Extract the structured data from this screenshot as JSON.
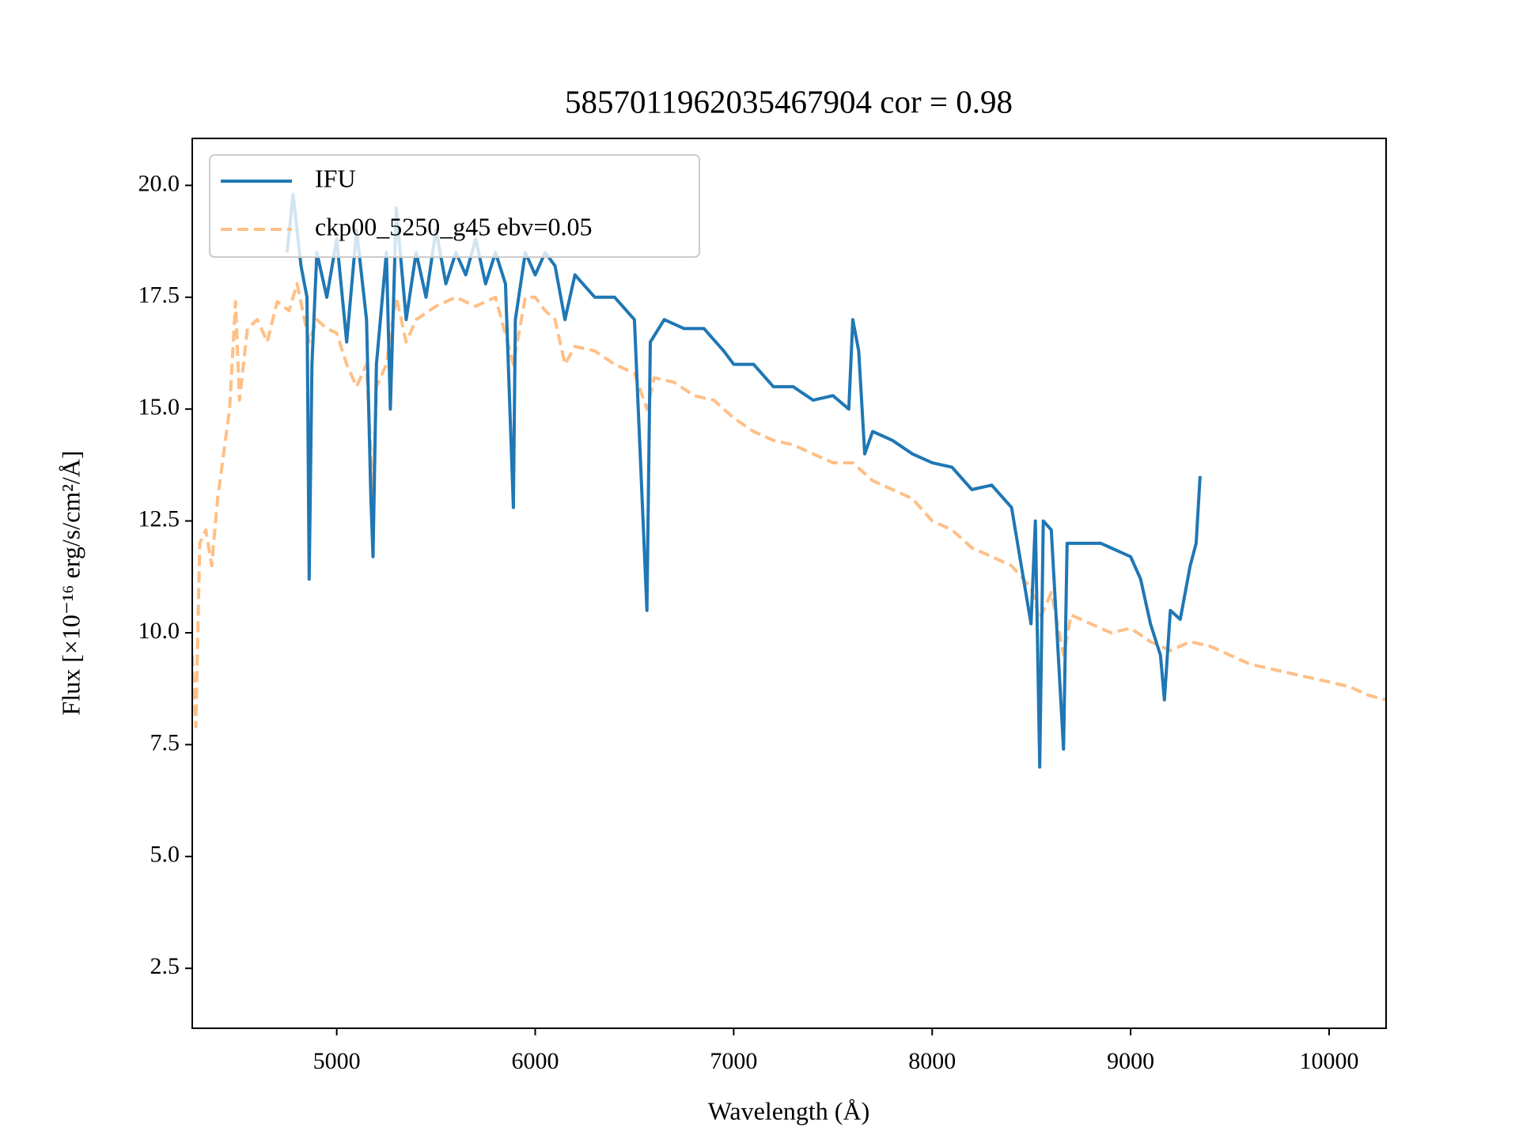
{
  "chart_data": {
    "type": "line",
    "title": "5857011962035467904 cor = 0.98",
    "xlabel": "Wavelength (Å)",
    "ylabel": "Flux [×10⁻¹⁶ erg/s/cm²/Å]",
    "xlim": [
      4272,
      10287
    ],
    "ylim": [
      1.16,
      21.05
    ],
    "xticks": [
      5000,
      6000,
      7000,
      8000,
      9000,
      10000
    ],
    "yticks": [
      2.5,
      {
        "value": 5,
        "label": "5.0"
      },
      7.5,
      {
        "value": 10,
        "label": "10.0"
      },
      12.5,
      {
        "value": 15,
        "label": "15.0"
      },
      17.5,
      {
        "value": 20,
        "label": "20.0"
      }
    ],
    "legend": "upper left",
    "series": [
      {
        "name": "IFU",
        "color": "#1f77b4",
        "dash": false,
        "x": [
          4750,
          4780,
          4820,
          4850,
          4861,
          4875,
          4900,
          4950,
          5000,
          5050,
          5100,
          5150,
          5172,
          5183,
          5200,
          5250,
          5270,
          5300,
          5350,
          5400,
          5450,
          5500,
          5550,
          5600,
          5650,
          5700,
          5750,
          5800,
          5850,
          5890,
          5900,
          5950,
          6000,
          6050,
          6100,
          6150,
          6200,
          6300,
          6400,
          6500,
          6563,
          6580,
          6650,
          6750,
          6850,
          6950,
          7000,
          7100,
          7200,
          7300,
          7400,
          7500,
          7580,
          7600,
          7630,
          7660,
          7700,
          7800,
          7900,
          8000,
          8100,
          8200,
          8300,
          8400,
          8498,
          8520,
          8542,
          8560,
          8600,
          8662,
          8680,
          8750,
          8850,
          8950,
          9000,
          9050,
          9100,
          9150,
          9170,
          9200,
          9250,
          9300,
          9330,
          9350
        ],
        "values": [
          18.5,
          19.8,
          18.2,
          17.5,
          11.2,
          16.0,
          18.5,
          17.5,
          18.8,
          16.5,
          19.0,
          17.0,
          13.0,
          11.7,
          16.0,
          18.5,
          15.0,
          19.5,
          17.0,
          18.5,
          17.5,
          19.0,
          17.8,
          18.5,
          18.0,
          18.8,
          17.8,
          18.5,
          17.8,
          12.8,
          17.0,
          18.5,
          18.0,
          18.5,
          18.2,
          17.0,
          18.0,
          17.5,
          17.5,
          17.0,
          10.5,
          16.5,
          17.0,
          16.8,
          16.8,
          16.3,
          16.0,
          16.0,
          15.5,
          15.5,
          15.2,
          15.3,
          15.0,
          17.0,
          16.3,
          14.0,
          14.5,
          14.3,
          14.0,
          13.8,
          13.7,
          13.2,
          13.3,
          12.8,
          10.2,
          12.5,
          7.0,
          12.5,
          12.3,
          7.4,
          12.0,
          12.0,
          12.0,
          11.8,
          11.7,
          11.2,
          10.2,
          9.5,
          8.5,
          10.5,
          10.3,
          11.5,
          12.0,
          13.5
        ]
      },
      {
        "name": "ckp00_5250_g45 ebv=0.05",
        "color": "#ffbf86",
        "dash": true,
        "x": [
          4272,
          4290,
          4310,
          4340,
          4370,
          4400,
          4430,
          4460,
          4490,
          4510,
          4550,
          4600,
          4650,
          4700,
          4760,
          4800,
          4861,
          4900,
          4950,
          5000,
          5050,
          5100,
          5150,
          5172,
          5183,
          5200,
          5250,
          5300,
          5350,
          5400,
          5500,
          5600,
          5700,
          5800,
          5890,
          5950,
          6000,
          6050,
          6100,
          6150,
          6200,
          6300,
          6400,
          6500,
          6563,
          6600,
          6700,
          6800,
          6900,
          7000,
          7100,
          7200,
          7300,
          7400,
          7500,
          7600,
          7700,
          7800,
          7900,
          8000,
          8100,
          8200,
          8300,
          8400,
          8498,
          8542,
          8600,
          8662,
          8700,
          8800,
          8900,
          9000,
          9100,
          9200,
          9300,
          9400,
          9500,
          9600,
          9700,
          9800,
          9900,
          10000,
          10100,
          10200,
          10287
        ],
        "values": [
          9.5,
          7.9,
          12.0,
          12.3,
          11.5,
          13.0,
          14.0,
          15.0,
          17.4,
          15.2,
          16.8,
          17.0,
          16.5,
          17.4,
          17.2,
          17.8,
          16.5,
          17.0,
          16.8,
          16.7,
          16.0,
          15.5,
          16.0,
          14.0,
          13.0,
          15.5,
          16.0,
          17.5,
          16.5,
          17.0,
          17.3,
          17.5,
          17.3,
          17.5,
          16.0,
          17.5,
          17.5,
          17.2,
          17.0,
          16.0,
          16.4,
          16.3,
          16.0,
          15.8,
          15.0,
          15.7,
          15.6,
          15.3,
          15.2,
          14.8,
          14.5,
          14.3,
          14.2,
          14.0,
          13.8,
          13.8,
          13.4,
          13.2,
          13.0,
          12.5,
          12.3,
          11.9,
          11.7,
          11.5,
          11.0,
          10.3,
          10.9,
          9.5,
          10.4,
          10.2,
          10.0,
          10.1,
          9.8,
          9.6,
          9.8,
          9.7,
          9.5,
          9.3,
          9.2,
          9.1,
          9.0,
          8.9,
          8.8,
          8.6,
          8.5
        ]
      }
    ]
  }
}
